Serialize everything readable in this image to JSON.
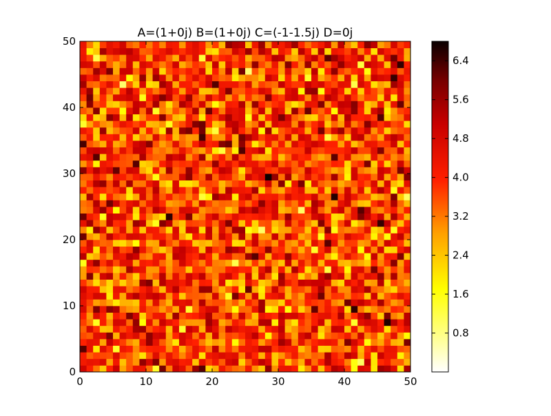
{
  "chart_data": {
    "type": "heatmap",
    "title": "A=(1+0j)  B=(1+0j)  C=(-1-1.5j)  D=0j",
    "xlabel": "",
    "ylabel": "",
    "grid_size": [
      50,
      50
    ],
    "xlim": [
      0,
      50
    ],
    "ylim": [
      0,
      50
    ],
    "xticks": [
      "0",
      "10",
      "20",
      "30",
      "40",
      "50"
    ],
    "yticks": [
      "0",
      "10",
      "20",
      "30",
      "40",
      "50"
    ],
    "colormap": "hot_r",
    "colorbar": {
      "range": [
        0,
        6.8
      ],
      "ticks": [
        "0.8",
        "1.6",
        "2.4",
        "3.2",
        "4.0",
        "4.8",
        "5.6",
        "6.4"
      ]
    },
    "grid": false,
    "legend": "none"
  }
}
